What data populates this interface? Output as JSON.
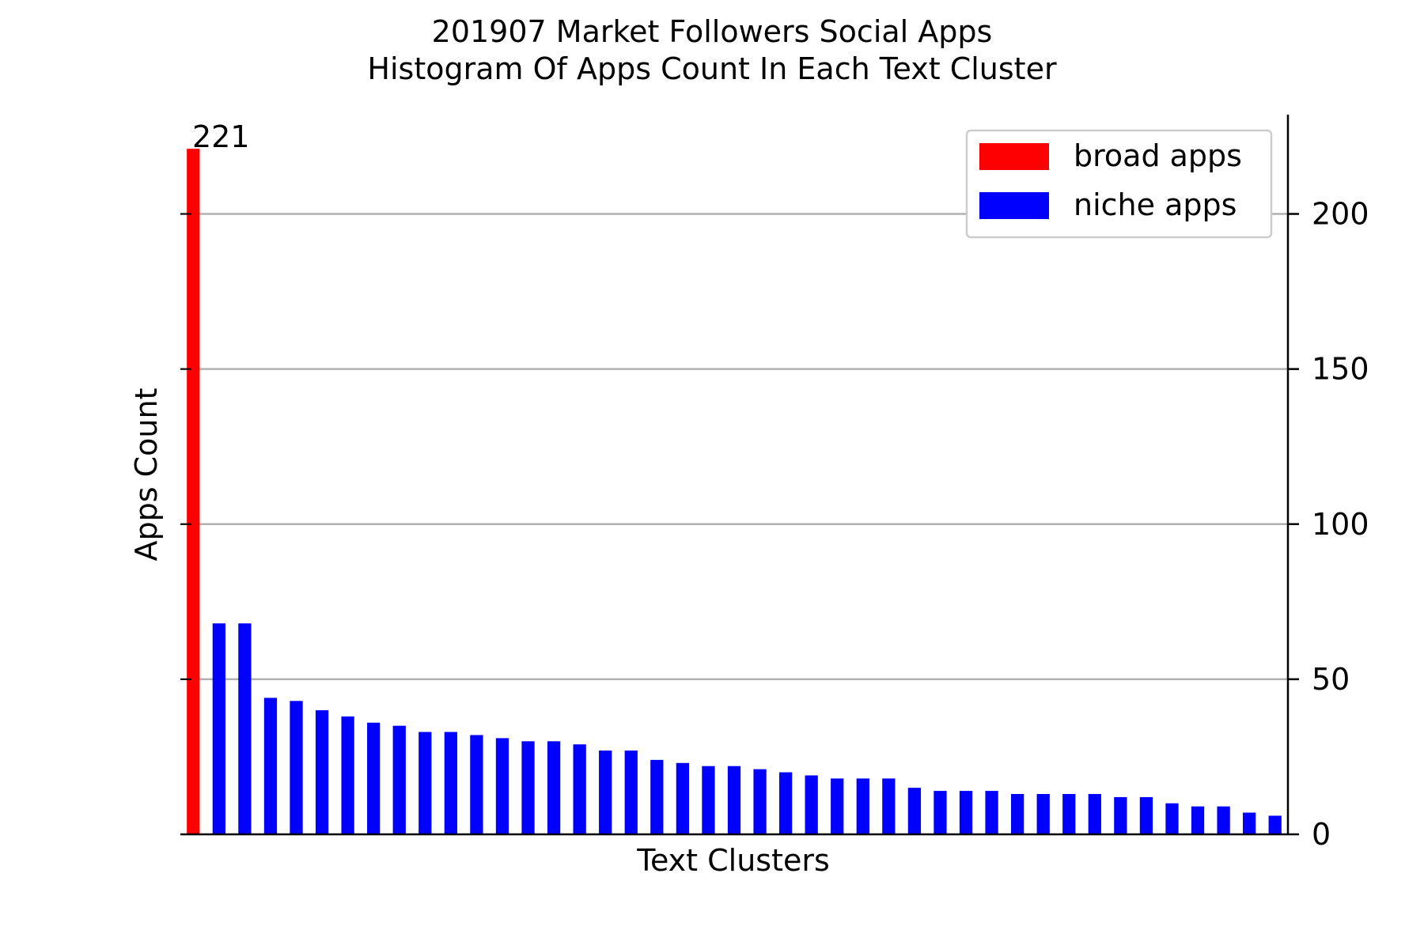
{
  "chart_data": {
    "type": "bar",
    "title": [
      "201907 Market Followers Social Apps",
      "Histogram Of Apps Count In Each Text Cluster"
    ],
    "xlabel": "Text Clusters",
    "ylabel": "Apps Count",
    "y_axis_side": "right",
    "ylim": [
      0,
      232
    ],
    "yticks": [
      0,
      50,
      100,
      150,
      200
    ],
    "grid": "horizontal",
    "legend_position": "top-right",
    "annotation": "221",
    "series": [
      {
        "name": "broad apps",
        "color": "#ff0000",
        "values": [
          221
        ]
      },
      {
        "name": "niche apps",
        "color": "#0000ff",
        "values": [
          68,
          68,
          44,
          43,
          40,
          38,
          36,
          35,
          33,
          33,
          32,
          31,
          30,
          30,
          29,
          27,
          27,
          24,
          23,
          22,
          22,
          21,
          20,
          19,
          18,
          18,
          18,
          15,
          14,
          14,
          14,
          13,
          13,
          13,
          13,
          12,
          12,
          10,
          9,
          9,
          7,
          6
        ]
      }
    ]
  }
}
